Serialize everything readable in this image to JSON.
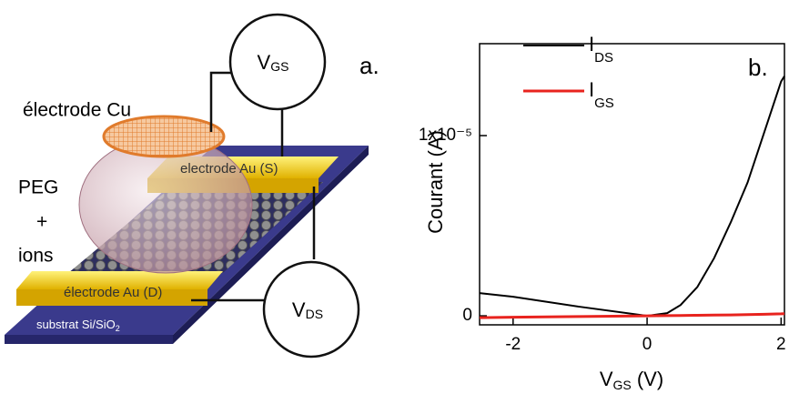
{
  "diagram": {
    "vgs": {
      "main": "V",
      "sub": "GS"
    },
    "vds": {
      "main": "V",
      "sub": "DS"
    },
    "panel_label": "a.",
    "cu_electrode": "électrode Cu",
    "source_electrode": "electrode Au (S)",
    "drain_electrode": "électrode Au (D)",
    "electrolyte": [
      "PEG",
      "+",
      "ions"
    ],
    "substrate": {
      "main": "substrat Si/SiO",
      "sub": "2"
    }
  },
  "chart_data": {
    "type": "line",
    "panel_label": "b.",
    "x_label": {
      "main": "V",
      "sub": "GS",
      "suffix": " (V)"
    },
    "y_label": "Courant (A)",
    "x": [
      -2.5,
      -2,
      -1,
      0,
      0.3,
      0.5,
      0.75,
      1,
      1.25,
      1.5,
      1.75,
      2,
      2.05
    ],
    "series": [
      {
        "name": "I",
        "subscript": "DS",
        "color": "#000000",
        "values": [
          1.26e-06,
          1.06e-06,
          5e-07,
          0,
          1.5e-07,
          6e-07,
          1.6e-06,
          3.2e-06,
          5.2e-06,
          7.4e-06,
          1.02e-05,
          1.3e-05,
          1.33e-05
        ]
      },
      {
        "name": "I",
        "subscript": "GS",
        "color": "#e8231e",
        "values": [
          -1e-07,
          -8e-08,
          -4e-08,
          0,
          1e-08,
          2e-08,
          3e-08,
          4e-08,
          5e-08,
          7e-08,
          9e-08,
          1.1e-07,
          1.2e-07
        ]
      }
    ],
    "xlim": [
      -2.5,
      2.05
    ],
    "ylim": [
      -5e-07,
      1.51e-05
    ],
    "xticks": [
      -2,
      0,
      2
    ],
    "yticks": [
      0,
      {
        "value": 1e-05,
        "label": "1x10⁻⁵"
      }
    ],
    "legend": "top-left"
  }
}
